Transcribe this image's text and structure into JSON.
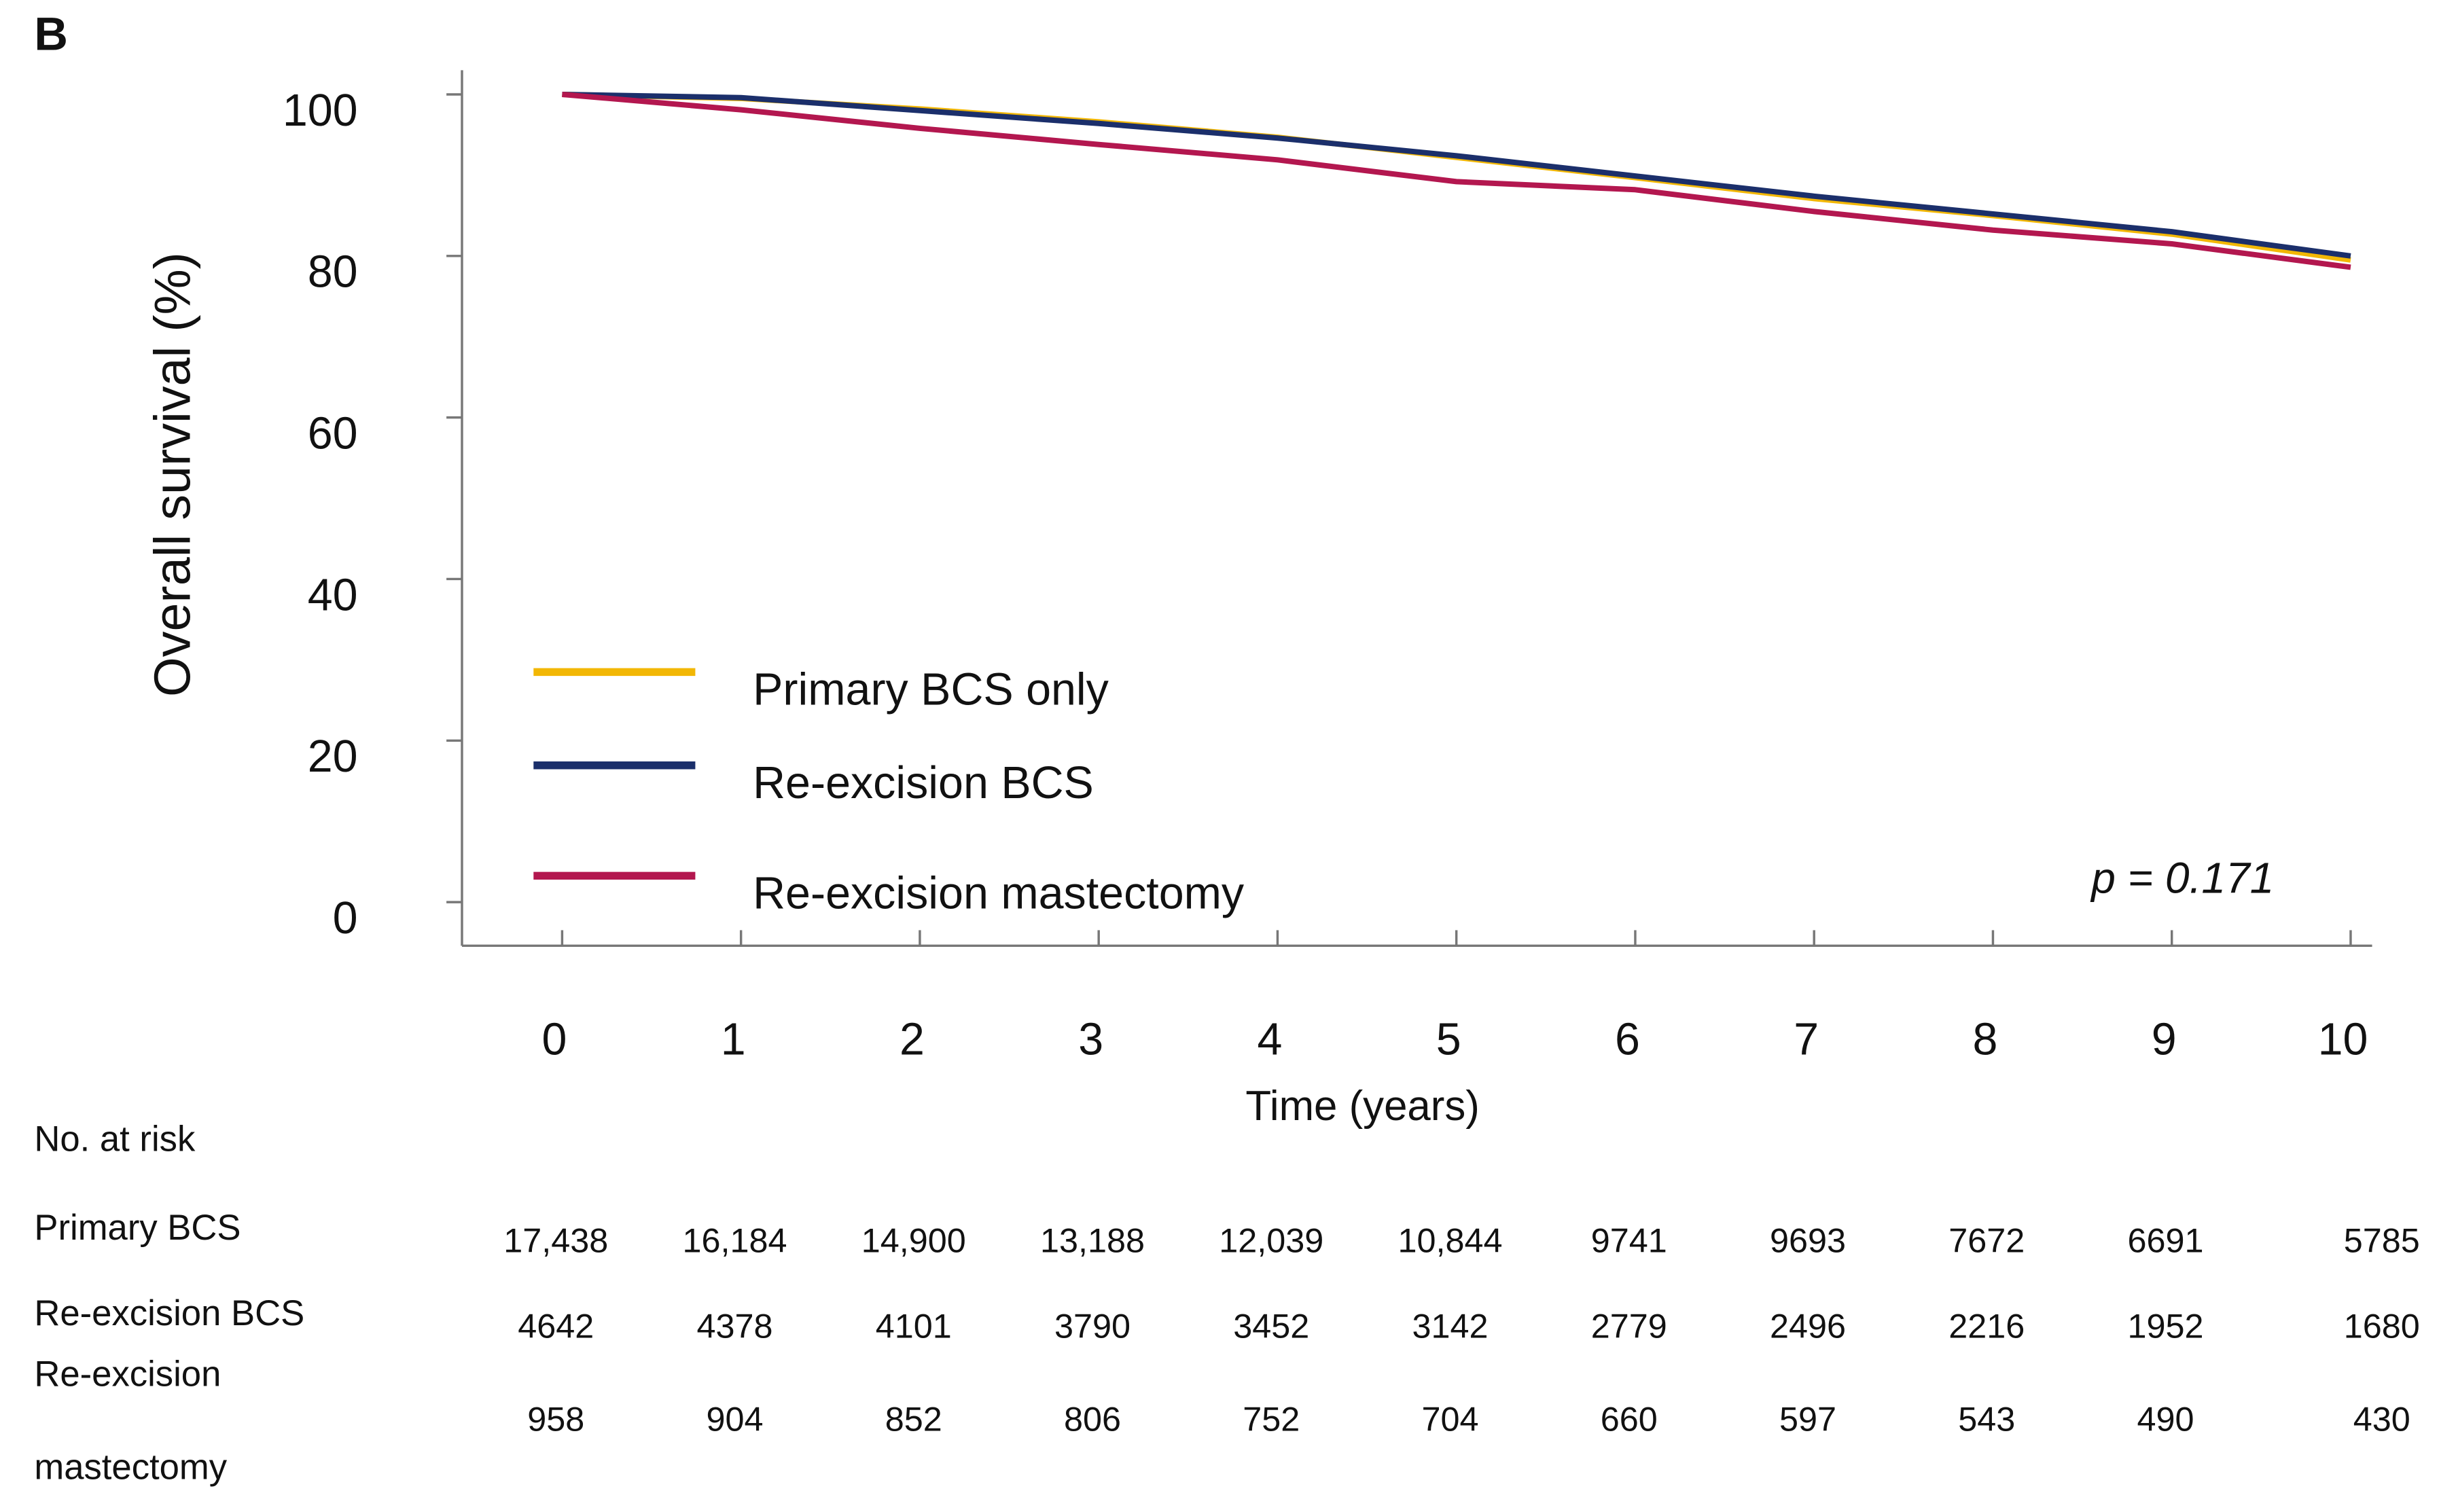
{
  "chart_data": {
    "type": "line",
    "panel_label": "B",
    "ylabel": "Overall survival (%)",
    "xlabel": "Time (years)",
    "x": [
      0,
      1,
      2,
      3,
      4,
      5,
      6,
      7,
      8,
      9,
      10
    ],
    "series": [
      {
        "name": "Primary BCS only",
        "color": "#f2b705",
        "values": [
          100,
          99.5,
          98.2,
          96.6,
          94.7,
          92.2,
          89.7,
          87.1,
          85.0,
          82.7,
          79.5
        ]
      },
      {
        "name": "Re-excision BCS",
        "color": "#1b2f6b",
        "values": [
          100,
          99.6,
          98.0,
          96.4,
          94.6,
          92.4,
          89.9,
          87.4,
          85.2,
          83.0,
          80.0
        ]
      },
      {
        "name": "Re-excision mastectomy",
        "color": "#b3174f",
        "values": [
          100,
          98.1,
          95.8,
          93.8,
          91.9,
          89.2,
          88.2,
          85.5,
          83.2,
          81.5,
          78.6
        ]
      }
    ],
    "xlim": [
      -0.56,
      10.12
    ],
    "ylim": [
      -5.4,
      103
    ],
    "xticks": [
      0,
      1,
      2,
      3,
      4,
      5,
      6,
      7,
      8,
      9,
      10
    ],
    "yticks": [
      0,
      20,
      40,
      60,
      80,
      100
    ],
    "grid": false,
    "legend": "lower left",
    "annotation": "p = 0.171",
    "risk_table": {
      "title": "No. at risk",
      "rows": [
        {
          "label": [
            "Primary BCS"
          ],
          "values": [
            17438,
            16184,
            14900,
            13188,
            12039,
            10844,
            9741,
            9693,
            7672,
            6691,
            5785
          ],
          "value_labels": [
            "17,438",
            "16,184",
            "14,900",
            "13,188",
            "12,039",
            "10,844",
            "9741",
            "9693",
            "7672",
            "6691",
            "5785"
          ]
        },
        {
          "label": [
            "Re-excision BCS"
          ],
          "values": [
            4642,
            4378,
            4101,
            3790,
            3452,
            3142,
            2779,
            2496,
            2216,
            1952,
            1680
          ]
        },
        {
          "label": [
            "Re-excision",
            "mastectomy"
          ],
          "values": [
            958,
            904,
            852,
            806,
            752,
            704,
            660,
            597,
            543,
            490,
            430
          ]
        }
      ]
    }
  }
}
